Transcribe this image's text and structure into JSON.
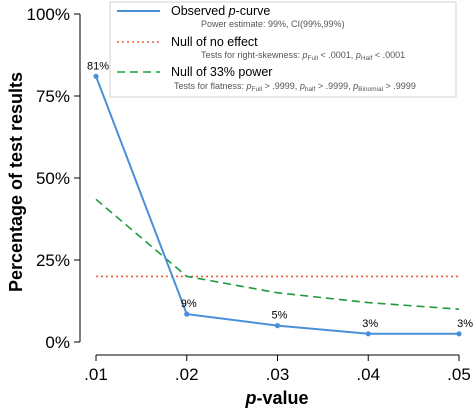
{
  "chart_data": {
    "type": "line",
    "x": [
      0.01,
      0.02,
      0.03,
      0.04,
      0.05
    ],
    "x_tick_labels": [
      ".01",
      ".02",
      ".03",
      ".04",
      ".05"
    ],
    "xlabel_italic": "p",
    "xlabel_rest": "-value",
    "ylabel": "Percentage of test results",
    "y_ticks": [
      0,
      25,
      50,
      75,
      100
    ],
    "y_tick_labels": [
      "0%",
      "25%",
      "50%",
      "75%",
      "100%"
    ],
    "ylim": [
      0,
      100
    ],
    "xlim": [
      0.01,
      0.05
    ],
    "series": [
      {
        "name_parts": [
          "Observed ",
          "p",
          "-curve"
        ],
        "values": [
          81,
          8.5,
          5,
          2.5,
          2.5
        ],
        "data_labels": [
          "81%",
          "9%",
          "5%",
          "3%",
          "3%"
        ],
        "color": "#4a90d9",
        "style": "solid"
      },
      {
        "name": "Null of no effect",
        "values": [
          20,
          20,
          20,
          20,
          20
        ],
        "color": "#e8603c",
        "style": "dotted"
      },
      {
        "name": "Null of 33% power",
        "values": [
          43.5,
          20,
          15,
          12,
          10
        ],
        "color": "#1f9a3a",
        "style": "dashed"
      }
    ],
    "legend": {
      "placement": "top-right",
      "observed_sub": "Power estimate: 99%, CI(99%,99%)",
      "noeffect_sub": {
        "prefix": "Tests for right-skewness: ",
        "p": "p",
        "full_sub": "Full",
        "full_val": " < .0001,  ",
        "half_sub": "Half",
        "half_val": " < .0001"
      },
      "power_sub": {
        "prefix": "Tests for flatness: ",
        "p": "p",
        "full_sub": "Full",
        "full_val": " > .9999,  ",
        "half_sub": "half",
        "half_val": " > .9999,  ",
        "binom_sub": "Binomial",
        "binom_val": " > .9999"
      }
    }
  }
}
